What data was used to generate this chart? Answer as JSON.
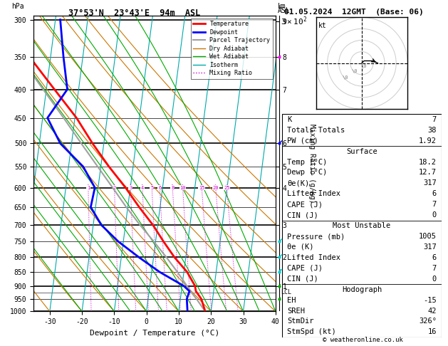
{
  "title_left": "37°53'N  23°43'E  94m  ASL",
  "title_right": "01.05.2024  12GMT  (Base: 06)",
  "xlabel": "Dewpoint / Temperature (°C)",
  "ylabel_left": "hPa",
  "pressure_levels": [
    300,
    350,
    400,
    450,
    500,
    550,
    600,
    650,
    700,
    750,
    800,
    850,
    900,
    950,
    1000
  ],
  "pressure_major": [
    300,
    400,
    500,
    600,
    700,
    800,
    900,
    1000
  ],
  "xlim": [
    -35,
    40
  ],
  "skew_factor": 22.5,
  "temp_profile": {
    "pressure": [
      1000,
      950,
      920,
      900,
      850,
      800,
      750,
      700,
      650,
      600,
      550,
      500,
      450,
      400,
      350,
      300
    ],
    "temperature": [
      18.2,
      16.5,
      14.5,
      14.0,
      11.0,
      6.5,
      2.5,
      -1.5,
      -6.5,
      -11.5,
      -17.5,
      -23.5,
      -29.5,
      -37.5,
      -46.5,
      -55.5
    ]
  },
  "dewpoint_profile": {
    "pressure": [
      1000,
      950,
      920,
      900,
      850,
      800,
      750,
      700,
      650,
      600,
      550,
      500,
      450,
      400,
      350,
      300
    ],
    "dewpoint": [
      12.7,
      12.0,
      12.5,
      10.5,
      2.5,
      -4.5,
      -11.5,
      -17.5,
      -21.5,
      -21.0,
      -25.5,
      -33.5,
      -38.5,
      -33.5,
      -36.0,
      -38.5
    ]
  },
  "parcel_profile": {
    "pressure": [
      1000,
      950,
      920,
      900,
      850,
      800,
      750,
      700,
      650,
      600,
      550,
      500,
      450,
      400,
      350,
      300
    ],
    "temperature": [
      18.2,
      15.0,
      12.8,
      11.5,
      8.0,
      4.0,
      -0.5,
      -5.5,
      -10.5,
      -15.5,
      -21.0,
      -27.0,
      -33.5,
      -41.0,
      -49.5,
      -58.5
    ]
  },
  "temp_color": "#ff0000",
  "dewpoint_color": "#0000ff",
  "parcel_color": "#a0a0a0",
  "dry_adiabat_color": "#cc7700",
  "wet_adiabat_color": "#00aa00",
  "isotherm_color": "#00aaaa",
  "mixing_ratio_color": "#cc00cc",
  "background_color": "#ffffff",
  "isotherm_values": [
    -50,
    -40,
    -30,
    -20,
    -10,
    0,
    10,
    20,
    30,
    40,
    50
  ],
  "dry_adiabat_thetas": [
    -30,
    -20,
    -10,
    0,
    10,
    20,
    30,
    40,
    50,
    60,
    70,
    80
  ],
  "wet_adiabat_t0s": [
    -20,
    -10,
    -5,
    0,
    5,
    10,
    15,
    20,
    25,
    30,
    35,
    40
  ],
  "mixing_ratio_lines": [
    1,
    2,
    3,
    4,
    5,
    6,
    8,
    10,
    15,
    20,
    25
  ],
  "lcl_pressure": 925,
  "legend_items": [
    {
      "label": "Temperature",
      "color": "#ff0000",
      "lw": 2
    },
    {
      "label": "Dewpoint",
      "color": "#0000ff",
      "lw": 2
    },
    {
      "label": "Parcel Trajectory",
      "color": "#a0a0a0",
      "lw": 1.5
    },
    {
      "label": "Dry Adiabat",
      "color": "#cc7700",
      "lw": 1
    },
    {
      "label": "Wet Adiabat",
      "color": "#00aa00",
      "lw": 1
    },
    {
      "label": "Isotherm",
      "color": "#00aaaa",
      "lw": 1
    },
    {
      "label": "Mixing Ratio",
      "color": "#cc00cc",
      "lw": 1,
      "linestyle": "dotted"
    }
  ],
  "table_rows": [
    [
      "K",
      "7",
      false
    ],
    [
      "Totals Totals",
      "38",
      false
    ],
    [
      "PW (cm)",
      "1.92",
      false
    ],
    [
      "Surface",
      "",
      true
    ],
    [
      "Temp (°C)",
      "18.2",
      false
    ],
    [
      "Dewp (°C)",
      "12.7",
      false
    ],
    [
      "θe(K)",
      "317",
      false
    ],
    [
      "Lifted Index",
      "6",
      false
    ],
    [
      "CAPE (J)",
      "7",
      false
    ],
    [
      "CIN (J)",
      "0",
      false
    ],
    [
      "Most Unstable",
      "",
      true
    ],
    [
      "Pressure (mb)",
      "1005",
      false
    ],
    [
      "θe (K)",
      "317",
      false
    ],
    [
      "Lifted Index",
      "6",
      false
    ],
    [
      "CAPE (J)",
      "7",
      false
    ],
    [
      "CIN (J)",
      "0",
      false
    ],
    [
      "Hodograph",
      "",
      true
    ],
    [
      "EH",
      "-15",
      false
    ],
    [
      "SREH",
      "42",
      false
    ],
    [
      "StmDir",
      "326°",
      false
    ],
    [
      "StmSpd (kt)",
      "16",
      false
    ]
  ],
  "section_dividers_after": [
    2,
    9,
    15
  ],
  "copyright": "© weatheronline.co.uk",
  "wind_barbs": [
    {
      "pressure": 350,
      "u": 5,
      "v": 0,
      "color": "#ff00ff"
    },
    {
      "pressure": 500,
      "u": 10,
      "v": 5,
      "color": "#0000ff"
    },
    {
      "pressure": 750,
      "u": 12,
      "v": 5,
      "color": "#00cccc"
    },
    {
      "pressure": 800,
      "u": 12,
      "v": 5,
      "color": "#00cccc"
    },
    {
      "pressure": 850,
      "u": 15,
      "v": 8,
      "color": "#00cccc"
    },
    {
      "pressure": 900,
      "u": 8,
      "v": 3,
      "color": "#00aa00"
    },
    {
      "pressure": 950,
      "u": 5,
      "v": 2,
      "color": "#00aa00"
    }
  ]
}
